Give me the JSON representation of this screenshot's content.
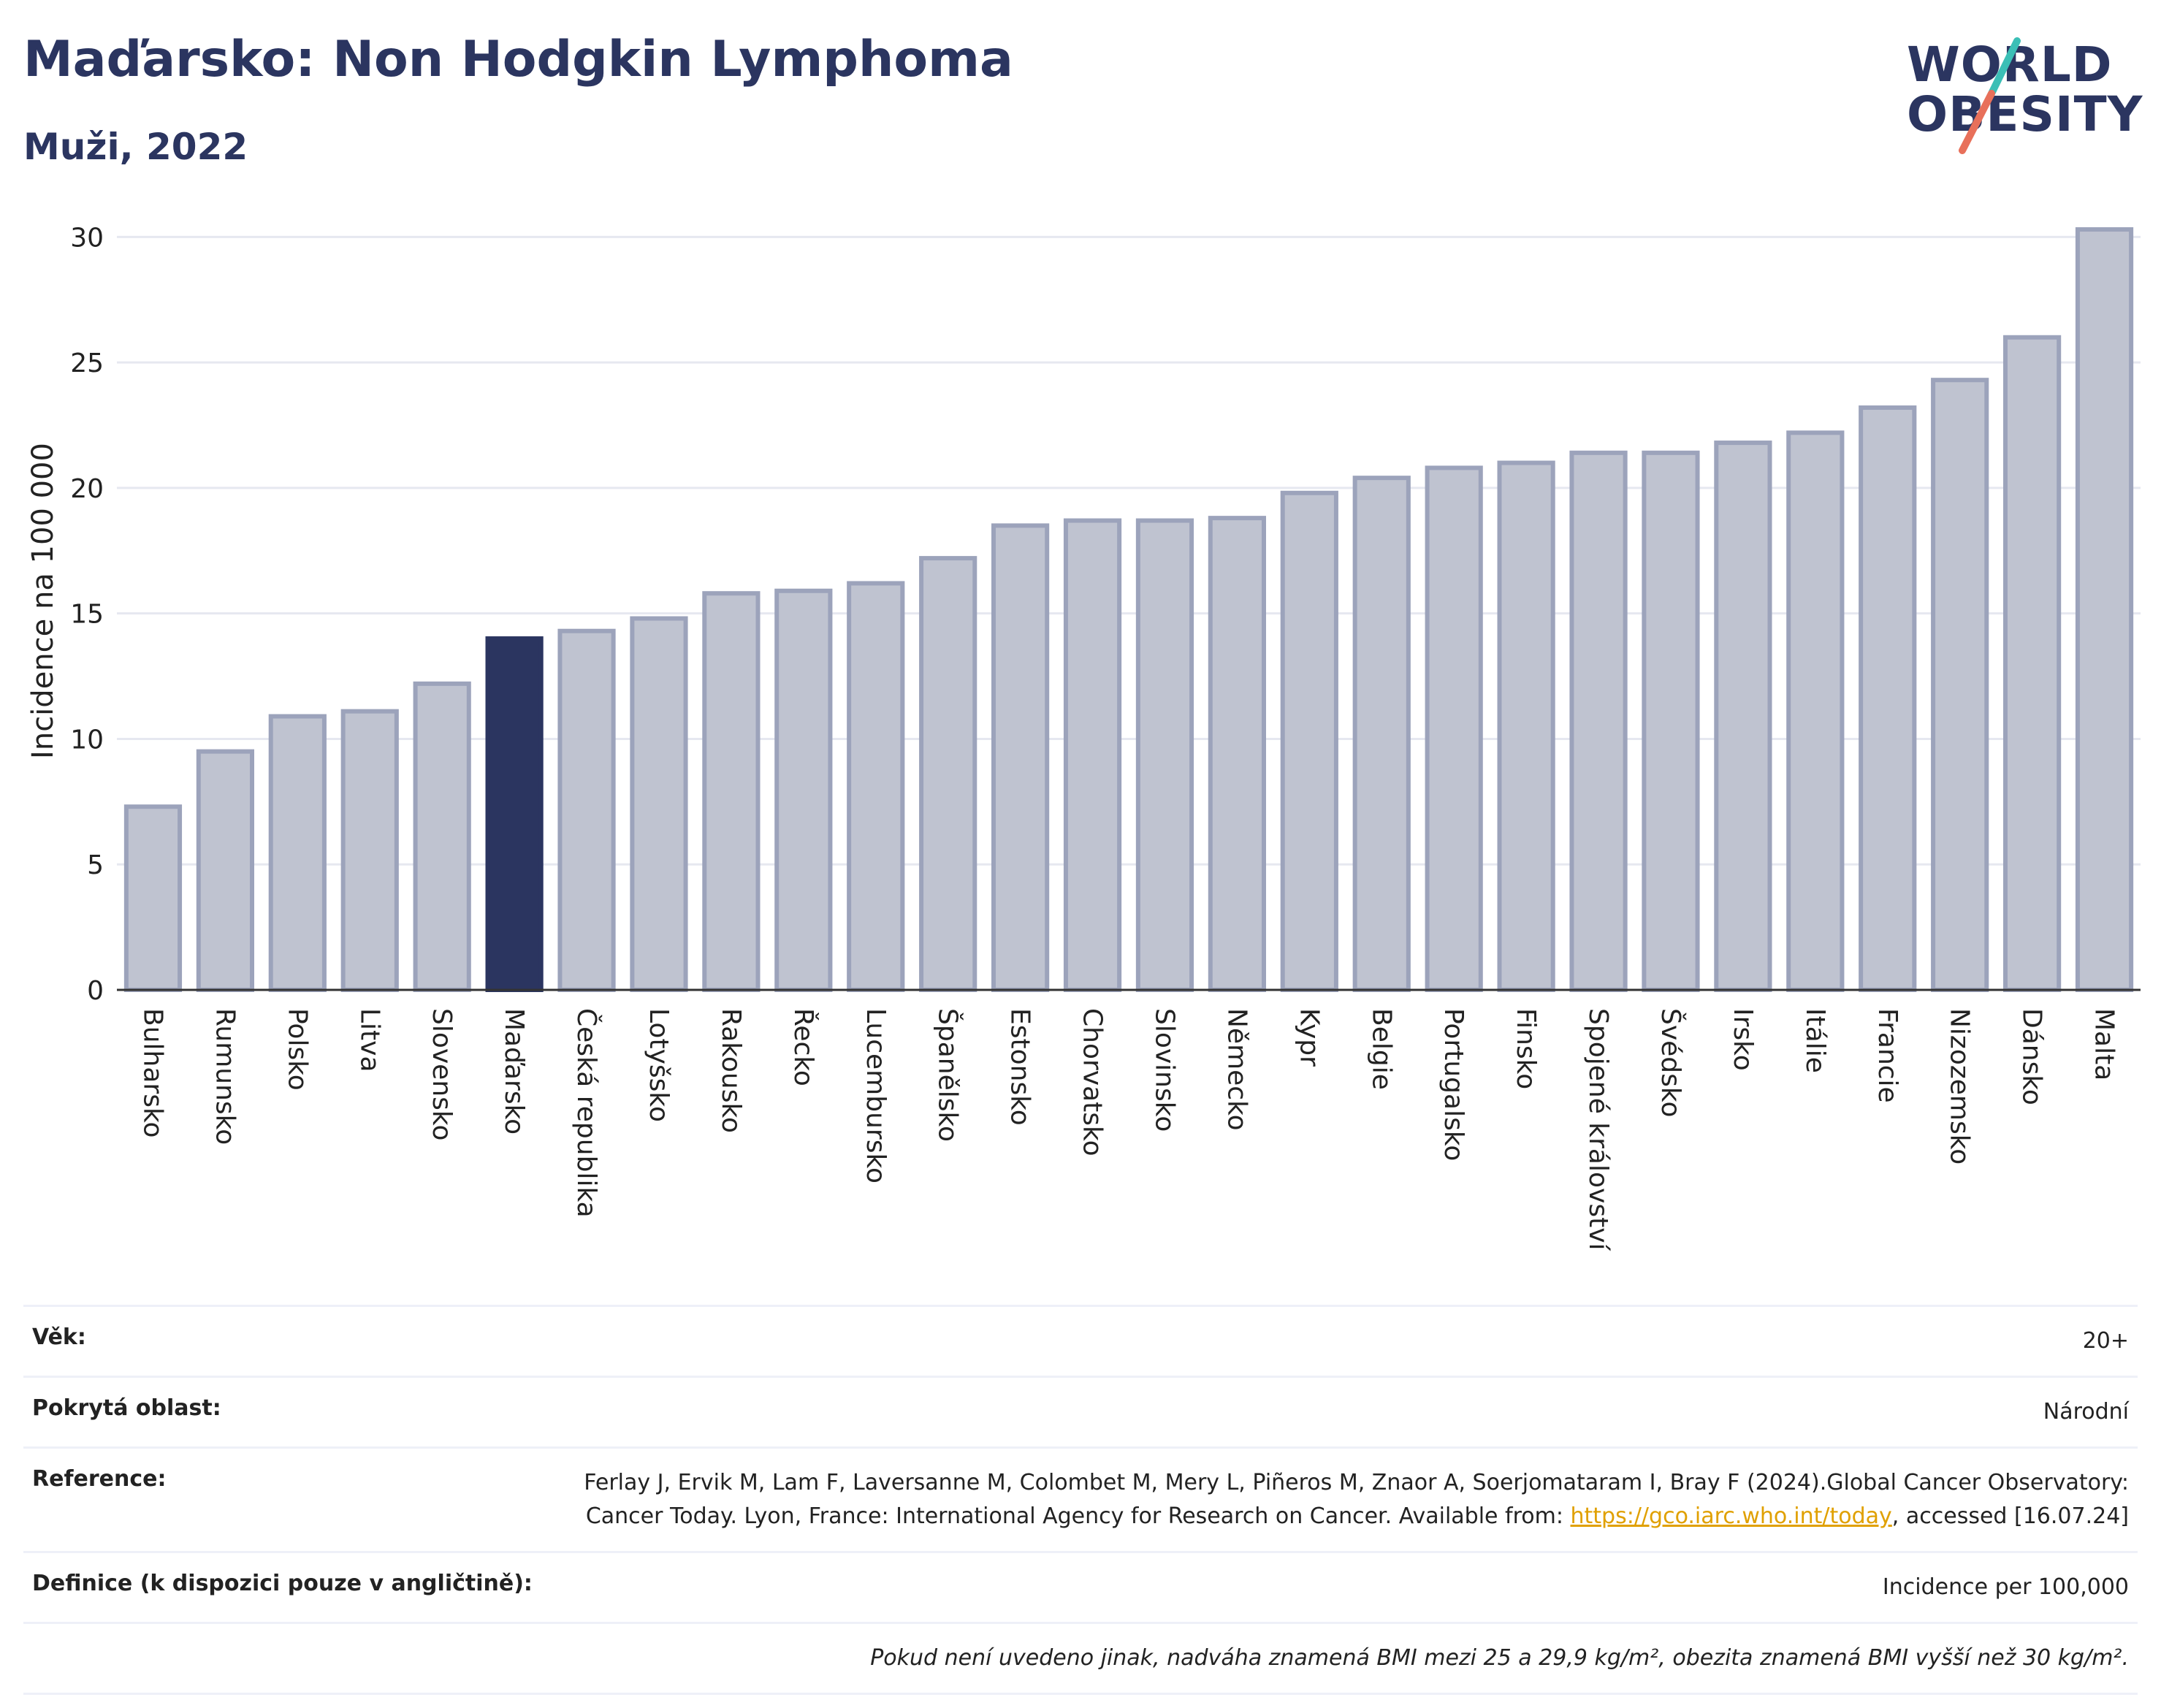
{
  "header": {
    "title": "Maďarsko: Non Hodgkin Lymphoma",
    "subtitle": "Muži, 2022"
  },
  "logo": {
    "line1": "WORLD",
    "line2": "OBESITY",
    "color_text": "#2b3560",
    "color_slash_top": "#3bbfb6",
    "color_slash_bottom": "#e8705a"
  },
  "chart_data": {
    "type": "bar",
    "ylabel": "Incidence na 100 000",
    "xlabel": "",
    "ylim": [
      0,
      31
    ],
    "yticks": [
      0,
      5,
      10,
      15,
      20,
      25,
      30
    ],
    "grid": true,
    "highlight": "Maďarsko",
    "colors": {
      "bar": "#bfc3d0",
      "bar_border": "#9ca3bb",
      "highlight": "#2b3560"
    },
    "categories": [
      "Bulharsko",
      "Rumunsko",
      "Polsko",
      "Litva",
      "Slovensko",
      "Maďarsko",
      "Česká republika",
      "Lotyšsko",
      "Rakousko",
      "Řecko",
      "Lucembursko",
      "Španělsko",
      "Estonsko",
      "Chorvatsko",
      "Slovinsko",
      "Německo",
      "Kypr",
      "Belgie",
      "Portugalsko",
      "Finsko",
      "Spojené království",
      "Švédsko",
      "Irsko",
      "Itálie",
      "Francie",
      "Nizozemsko",
      "Dánsko",
      "Malta"
    ],
    "values": [
      7.3,
      9.5,
      10.9,
      11.1,
      12.2,
      14.0,
      14.3,
      14.8,
      15.8,
      15.9,
      16.2,
      17.2,
      18.5,
      18.7,
      18.7,
      18.8,
      19.8,
      20.4,
      20.8,
      21.0,
      21.4,
      21.4,
      21.8,
      22.2,
      23.2,
      24.3,
      26.0,
      30.3
    ]
  },
  "info": {
    "age_label": "Věk:",
    "age_value": "20+",
    "area_label": "Pokrytá oblast:",
    "area_value": "Národní",
    "ref_label": "Reference:",
    "ref_text_1": "Ferlay J, Ervik M, Lam F, Laversanne M, Colombet M, Mery L, Piñeros M, Znaor A, Soerjomataram I, Bray F (2024).Global Cancer Observatory: Cancer Today. Lyon, France: International Agency for Research on Cancer. Available from: ",
    "ref_link": "https://gco.iarc.who.int/today",
    "ref_text_2": ", accessed [16.07.24]",
    "def_label": "Definice (k dispozici pouze v angličtině):",
    "def_value": "Incidence per 100,000",
    "note": "Pokud není uvedeno jinak, nadváha znamená BMI mezi 25 a 29,9 kg/m², obezita znamená BMI vyšší než 30 kg/m²."
  }
}
